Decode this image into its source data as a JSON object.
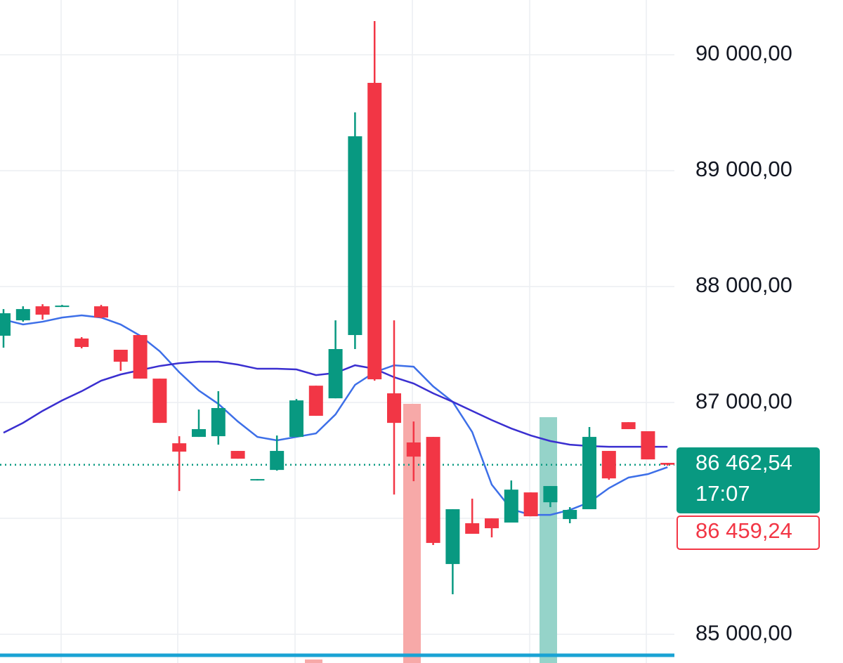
{
  "chart_data": {
    "type": "candlestick",
    "up_color": "#089981",
    "down_color": "#f23645",
    "ylim": [
      84752,
      90473
    ],
    "yticks": [
      {
        "value": 90000,
        "label": "90 000,00"
      },
      {
        "value": 89000,
        "label": "89 000,00"
      },
      {
        "value": 88000,
        "label": "88 000,00"
      },
      {
        "value": 87000,
        "label": "87 000,00"
      },
      {
        "value": 85000,
        "label": "85 000,00"
      }
    ],
    "open": [
      87576,
      87709,
      87830,
      87836,
      87552,
      87830,
      87455,
      87582,
      87206,
      86648,
      86703,
      86709,
      86582,
      86327,
      86418,
      86703,
      87145,
      87036,
      87582,
      89758,
      87079,
      86655,
      86703,
      85606,
      85958,
      86000,
      85964,
      86224,
      86139,
      85994,
      86079,
      86582,
      86830,
      86752,
      86479
    ],
    "high": [
      87806,
      87830,
      87848,
      87842,
      87564,
      87842,
      87455,
      87582,
      87206,
      86709,
      86939,
      87097,
      86582,
      86339,
      86715,
      87030,
      87145,
      87709,
      89503,
      90291,
      87709,
      86836,
      86703,
      86079,
      86170,
      86000,
      86327,
      86224,
      86279,
      86097,
      86788,
      86582,
      86830,
      86752,
      86479
    ],
    "low": [
      87473,
      87697,
      87715,
      87830,
      87467,
      87727,
      87273,
      87206,
      86824,
      86236,
      86703,
      86636,
      86515,
      86327,
      86412,
      86703,
      86885,
      87036,
      87461,
      87188,
      86206,
      86321,
      85770,
      85345,
      85867,
      85836,
      85964,
      86018,
      86097,
      85958,
      86079,
      86333,
      86770,
      86509,
      86455
    ],
    "close": [
      87770,
      87806,
      87758,
      87836,
      87479,
      87733,
      87352,
      87206,
      86824,
      86576,
      86770,
      86952,
      86515,
      86339,
      86582,
      87018,
      86885,
      87461,
      89297,
      87200,
      86824,
      86533,
      85788,
      86079,
      85867,
      85915,
      86248,
      86018,
      86279,
      86073,
      86703,
      86345,
      86770,
      86509,
      86463
    ],
    "series": [
      {
        "color": "#3d6fe8",
        "values": [
          87715,
          87673,
          87697,
          87733,
          87752,
          87733,
          87673,
          87576,
          87442,
          87261,
          87103,
          86988,
          86836,
          86703,
          86673,
          86703,
          86733,
          86897,
          87152,
          87261,
          87321,
          87309,
          87139,
          87006,
          86745,
          86291,
          86079,
          86030,
          86030,
          86073,
          86139,
          86261,
          86352,
          86382,
          86442
        ]
      },
      {
        "color": "#3a2fd0",
        "values": [
          86739,
          86824,
          86927,
          87018,
          87097,
          87188,
          87242,
          87279,
          87315,
          87339,
          87352,
          87352,
          87327,
          87291,
          87291,
          87285,
          87236,
          87255,
          87321,
          87291,
          87218,
          87164,
          87079,
          87006,
          86927,
          86848,
          86776,
          86715,
          86667,
          86636,
          86624,
          86618,
          86618,
          86618,
          86618
        ]
      }
    ],
    "current_price": {
      "value": 86462.54,
      "label": "86 462,54"
    },
    "countdown": "17:07",
    "second_price": {
      "value": 86459.24,
      "label": "86 459,24"
    }
  }
}
